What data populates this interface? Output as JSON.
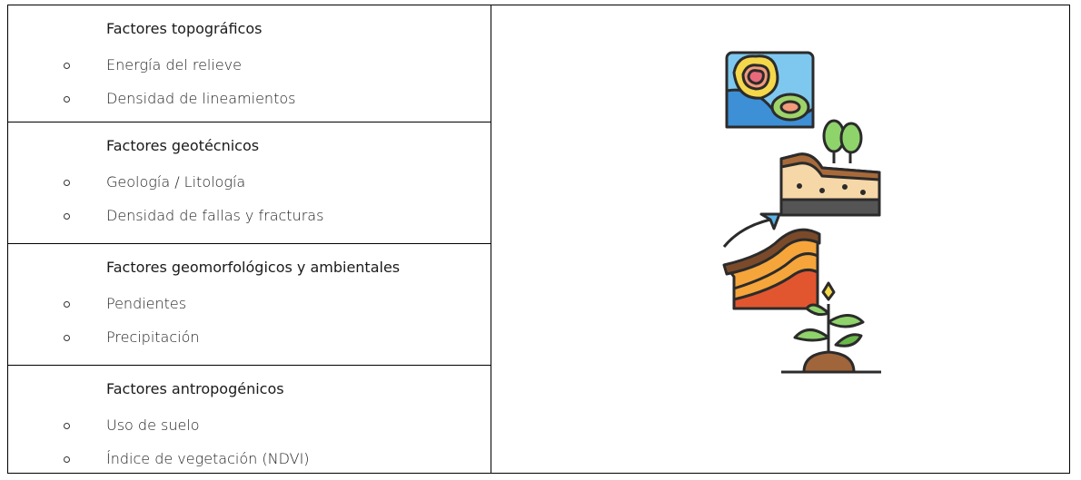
{
  "sections": [
    {
      "title": "Factores topográficos",
      "items": [
        "Energía del relieve",
        "Densidad de lineamientos"
      ]
    },
    {
      "title": "Factores geotécnicos",
      "items": [
        "Geología / Litología",
        "Densidad de fallas y fracturas"
      ]
    },
    {
      "title": "Factores geomorfológicos y ambientales",
      "items": [
        "Pendientes",
        "Precipitación"
      ]
    },
    {
      "title": "Factores antropogénicos",
      "items": [
        "Uso de suelo",
        "Índice de vegetación (NDVI)"
      ]
    }
  ]
}
